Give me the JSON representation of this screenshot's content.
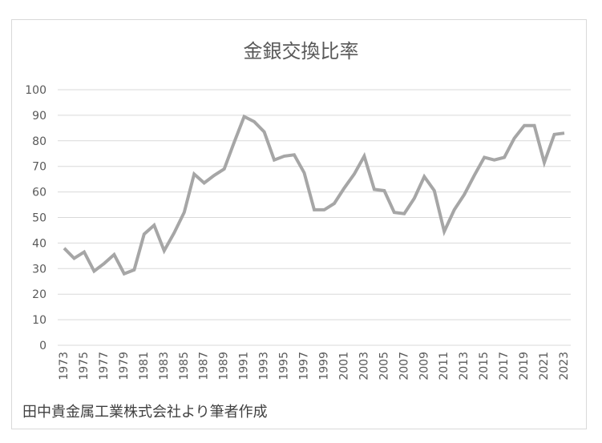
{
  "chart_data": {
    "type": "line",
    "title": "金銀交換比率",
    "source_note": "田中貴金属工業株式会社より筆者作成",
    "xlabel": "",
    "ylabel": "",
    "ylim": [
      0,
      100
    ],
    "y_ticks": [
      0,
      10,
      20,
      30,
      40,
      50,
      60,
      70,
      80,
      90,
      100
    ],
    "x_tick_labels": [
      "1973",
      "1975",
      "1977",
      "1979",
      "1981",
      "1983",
      "1985",
      "1987",
      "1989",
      "1991",
      "1993",
      "1995",
      "1997",
      "1999",
      "2001",
      "2003",
      "2005",
      "2007",
      "2009",
      "2011",
      "2013",
      "2015",
      "2017",
      "2019",
      "2021",
      "2023"
    ],
    "grid": true,
    "legend": "none",
    "line_color": "#a6a6a6",
    "grid_color": "#d9d9d9",
    "x": [
      1973,
      1974,
      1975,
      1976,
      1977,
      1978,
      1979,
      1980,
      1981,
      1982,
      1983,
      1984,
      1985,
      1986,
      1987,
      1988,
      1989,
      1990,
      1991,
      1992,
      1993,
      1994,
      1995,
      1996,
      1997,
      1998,
      1999,
      2000,
      2001,
      2002,
      2003,
      2004,
      2005,
      2006,
      2007,
      2008,
      2009,
      2010,
      2011,
      2012,
      2013,
      2014,
      2015,
      2016,
      2017,
      2018,
      2019,
      2020,
      2021,
      2022,
      2023
    ],
    "series": [
      {
        "values": [
          38,
          34,
          36.5,
          29,
          32,
          35.5,
          28,
          29.5,
          43.5,
          47,
          37,
          44,
          52,
          67,
          63.5,
          66.5,
          69,
          79.5,
          89.5,
          87.5,
          83.5,
          72.5,
          74,
          74.5,
          67.5,
          53,
          53,
          55.5,
          61.5,
          67,
          74,
          61,
          60.5,
          52,
          51.5,
          57.5,
          66,
          60.5,
          44.5,
          53,
          59,
          66.5,
          73.5,
          72.5,
          73.5,
          81,
          86,
          86,
          71.5,
          82.5,
          83
        ]
      }
    ]
  }
}
